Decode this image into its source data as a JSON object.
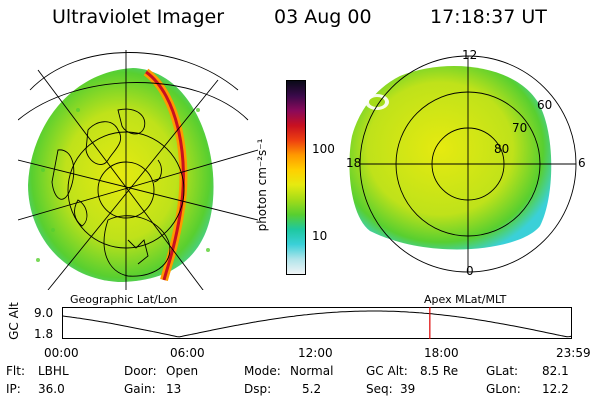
{
  "header": {
    "instrument": "Ultraviolet Imager",
    "date": "03 Aug 00",
    "time": "17:18:37 UT"
  },
  "left_panel": {
    "caption": "Geographic Lat/Lon"
  },
  "right_panel": {
    "caption": "Apex MLat/MLT",
    "mlt_labels": {
      "top": "12",
      "left": "18",
      "right": "6",
      "bottom": "0"
    },
    "lat_labels": [
      "60",
      "70",
      "80"
    ]
  },
  "colorbar": {
    "unit_label": "photon cm⁻²s⁻¹",
    "ticks": [
      "100",
      "10"
    ],
    "colors": [
      "#0a0a18",
      "#3a0a4a",
      "#8a0a5a",
      "#c81020",
      "#ee4010",
      "#ff9a00",
      "#ffd000",
      "#e6ea10",
      "#a4dc18",
      "#58cf30",
      "#1ec8a0",
      "#3ad0d8",
      "#b0e4ea",
      "#f0f4f6"
    ]
  },
  "timeline": {
    "y_label": "GC Alt",
    "y_ticks": [
      "9.0",
      "1.8"
    ],
    "x_ticks": [
      "00:00",
      "06:00",
      "12:00",
      "18:00",
      "23:59"
    ],
    "marker_hour": 17.31,
    "marker_color": "#dd0000"
  },
  "info": {
    "filter_label": "Flt:",
    "filter": "LBHL",
    "ip_label": "IP:",
    "ip": "36.0",
    "door_label": "Door:",
    "door": "Open",
    "gain_label": "Gain:",
    "gain": "13",
    "mode_label": "Mode:",
    "mode": "Normal",
    "dsp_label": "Dsp:",
    "dsp": "5.2",
    "gcalt_label": "GC Alt:",
    "gcalt": "8.5 Re",
    "seq_label": "Seq:",
    "seq": "39",
    "glat_label": "GLat:",
    "glat": "82.1",
    "glon_label": "GLon:",
    "glon": "12.2"
  }
}
